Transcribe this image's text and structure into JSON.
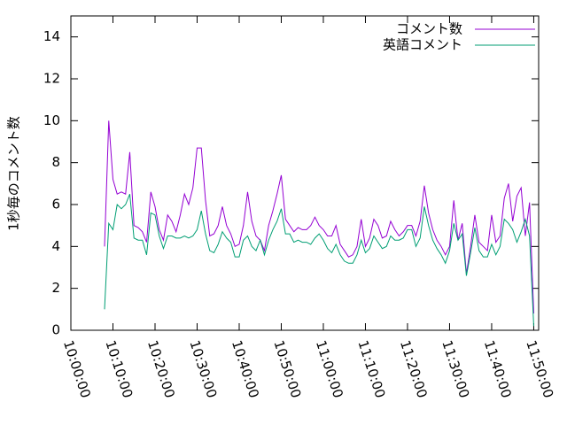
{
  "chart_data": {
    "type": "line",
    "y_label": "1秒毎のコメント数",
    "x": [
      "10:08:00",
      "10:09:00",
      "10:10:00",
      "10:11:00",
      "10:12:00",
      "10:13:00",
      "10:14:00",
      "10:15:00",
      "10:16:00",
      "10:17:00",
      "10:18:00",
      "10:19:00",
      "10:20:00",
      "10:21:00",
      "10:22:00",
      "10:23:00",
      "10:24:00",
      "10:25:00",
      "10:26:00",
      "10:27:00",
      "10:28:00",
      "10:29:00",
      "10:30:00",
      "10:31:00",
      "10:32:00",
      "10:33:00",
      "10:34:00",
      "10:35:00",
      "10:36:00",
      "10:37:00",
      "10:38:00",
      "10:39:00",
      "10:40:00",
      "10:41:00",
      "10:42:00",
      "10:43:00",
      "10:44:00",
      "10:45:00",
      "10:46:00",
      "10:47:00",
      "10:48:00",
      "10:49:00",
      "10:50:00",
      "10:51:00",
      "10:52:00",
      "10:53:00",
      "10:54:00",
      "10:55:00",
      "10:56:00",
      "10:57:00",
      "10:58:00",
      "10:59:00",
      "11:00:00",
      "11:01:00",
      "11:02:00",
      "11:03:00",
      "11:04:00",
      "11:05:00",
      "11:06:00",
      "11:07:00",
      "11:08:00",
      "11:09:00",
      "11:10:00",
      "11:11:00",
      "11:12:00",
      "11:13:00",
      "11:14:00",
      "11:15:00",
      "11:16:00",
      "11:17:00",
      "11:18:00",
      "11:19:00",
      "11:20:00",
      "11:21:00",
      "11:22:00",
      "11:23:00",
      "11:24:00",
      "11:25:00",
      "11:26:00",
      "11:27:00",
      "11:28:00",
      "11:29:00",
      "11:30:00",
      "11:31:00",
      "11:32:00",
      "11:33:00",
      "11:34:00",
      "11:35:00",
      "11:36:00",
      "11:37:00",
      "11:38:00",
      "11:39:00",
      "11:40:00",
      "11:41:00",
      "11:42:00",
      "11:43:00",
      "11:44:00",
      "11:45:00",
      "11:46:00",
      "11:47:00",
      "11:48:00",
      "11:49:00",
      "11:50:00"
    ],
    "series": [
      {
        "name": "コメント数",
        "color": "#9400d3",
        "values": [
          4.0,
          10.0,
          7.2,
          6.5,
          6.6,
          6.5,
          8.5,
          5.0,
          4.9,
          4.7,
          4.2,
          6.6,
          5.9,
          4.8,
          4.3,
          5.5,
          5.2,
          4.7,
          5.5,
          6.5,
          6.0,
          6.8,
          8.7,
          8.7,
          6.2,
          4.5,
          4.6,
          5.0,
          5.9,
          5.0,
          4.6,
          4.0,
          4.1,
          5.0,
          6.6,
          5.2,
          4.5,
          4.3,
          3.8,
          5.0,
          5.7,
          6.5,
          7.4,
          5.3,
          5.0,
          4.7,
          4.9,
          4.8,
          4.8,
          5.0,
          5.4,
          5.0,
          4.8,
          4.5,
          4.5,
          5.0,
          4.1,
          3.8,
          3.5,
          3.6,
          4.0,
          5.3,
          4.0,
          4.4,
          5.3,
          5.0,
          4.4,
          4.5,
          5.2,
          4.8,
          4.5,
          4.7,
          5.0,
          5.0,
          4.5,
          5.2,
          6.9,
          5.6,
          4.8,
          4.3,
          4.0,
          3.6,
          4.0,
          6.2,
          4.3,
          5.1,
          2.7,
          4.0,
          5.5,
          4.2,
          4.0,
          3.8,
          5.5,
          4.2,
          4.5,
          6.3,
          7.0,
          5.2,
          6.4,
          6.8,
          4.5,
          6.1,
          0.8
        ]
      },
      {
        "name": "英語コメント",
        "color": "#009e73",
        "values": [
          1.0,
          5.1,
          4.8,
          6.0,
          5.8,
          6.0,
          6.5,
          4.4,
          4.3,
          4.3,
          3.6,
          5.6,
          5.5,
          4.5,
          3.9,
          4.5,
          4.5,
          4.4,
          4.4,
          4.5,
          4.4,
          4.5,
          4.8,
          5.7,
          4.6,
          3.8,
          3.7,
          4.1,
          4.7,
          4.4,
          4.2,
          3.5,
          3.5,
          4.3,
          4.5,
          4.0,
          3.8,
          4.3,
          3.6,
          4.3,
          4.8,
          5.2,
          5.8,
          4.6,
          4.6,
          4.2,
          4.3,
          4.2,
          4.2,
          4.1,
          4.4,
          4.6,
          4.3,
          3.9,
          3.7,
          4.1,
          3.6,
          3.3,
          3.2,
          3.2,
          3.6,
          4.3,
          3.7,
          3.9,
          4.5,
          4.2,
          3.9,
          4.0,
          4.5,
          4.3,
          4.3,
          4.4,
          4.8,
          4.8,
          4.0,
          4.4,
          5.9,
          5.0,
          4.3,
          3.9,
          3.6,
          3.2,
          3.8,
          5.1,
          4.3,
          4.6,
          2.6,
          3.7,
          4.9,
          3.8,
          3.5,
          3.5,
          4.1,
          3.6,
          4.0,
          5.3,
          5.1,
          4.8,
          4.2,
          4.7,
          5.3,
          4.5,
          0.2
        ]
      }
    ],
    "xlim": [
      "10:00:00",
      "11:51:10"
    ],
    "xticks": [
      "10:00:00",
      "10:10:00",
      "10:20:00",
      "10:30:00",
      "10:40:00",
      "10:50:00",
      "11:00:00",
      "11:10:00",
      "11:20:00",
      "11:30:00",
      "11:40:00",
      "11:50:00"
    ],
    "ylim": [
      0,
      15
    ],
    "yticks": [
      0,
      2,
      4,
      6,
      8,
      10,
      12,
      14
    ],
    "legend": "top-right"
  }
}
